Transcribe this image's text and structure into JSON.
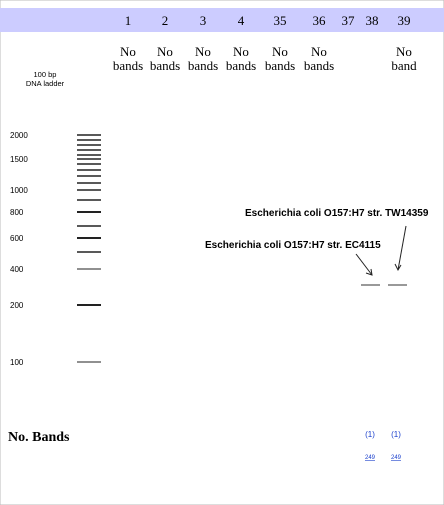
{
  "header": {
    "lanes": [
      "1",
      "2",
      "3",
      "4",
      "35",
      "36",
      "37",
      "38",
      "39"
    ]
  },
  "lane_notes": [
    {
      "lane": "1",
      "line1": "No",
      "line2": "bands"
    },
    {
      "lane": "2",
      "line1": "No",
      "line2": "bands"
    },
    {
      "lane": "3",
      "line1": "No",
      "line2": "bands"
    },
    {
      "lane": "4",
      "line1": "No",
      "line2": "bands"
    },
    {
      "lane": "35",
      "line1": "No",
      "line2": "bands"
    },
    {
      "lane": "36",
      "line1": "No",
      "line2": "bands"
    },
    {
      "lane": "39",
      "line1": "No",
      "line2": "band"
    }
  ],
  "ladder": {
    "label_line1": "100 bp",
    "label_line2": "DNA ladder",
    "sizes": [
      "2000",
      "1500",
      "1000",
      "800",
      "600",
      "400",
      "200",
      "100"
    ]
  },
  "annotations": [
    "Escherichia coli O157:H7 str. TW14359",
    "Escherichia coli O157:H7 str. EC4115"
  ],
  "footer": {
    "label": "No. Bands",
    "counts": [
      "(1)",
      "(1)"
    ],
    "sizes": [
      "249",
      "249"
    ]
  }
}
